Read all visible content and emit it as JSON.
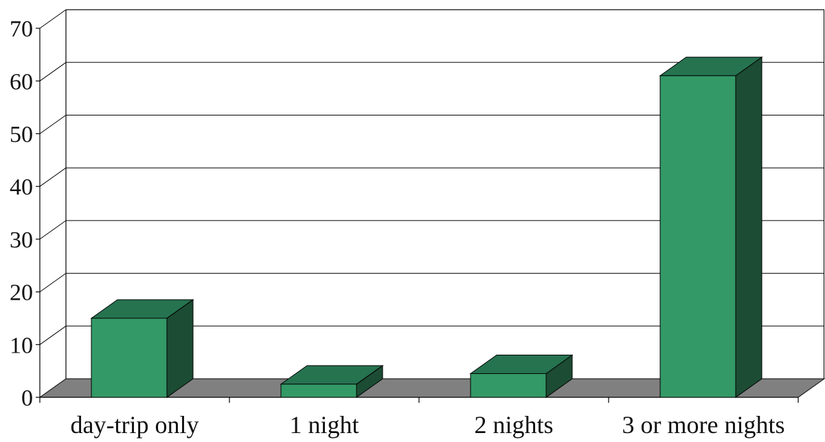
{
  "chart_data": {
    "type": "bar",
    "style": "3d",
    "categories": [
      "day-trip only",
      "1 night",
      "2 nights",
      "3 or more nights"
    ],
    "series": [
      {
        "values": [
          15,
          2.5,
          4.5,
          61
        ]
      }
    ],
    "ylim": [
      0,
      70
    ],
    "yticks": [
      "0",
      "10",
      "20",
      "30",
      "40",
      "50",
      "60",
      "70"
    ],
    "grid": true,
    "legend": "none",
    "colors": {
      "bar_front": "#339966",
      "bar_top": "#267350",
      "bar_side": "#1c4c33",
      "floor": "#808080",
      "grid": "#000000"
    }
  }
}
